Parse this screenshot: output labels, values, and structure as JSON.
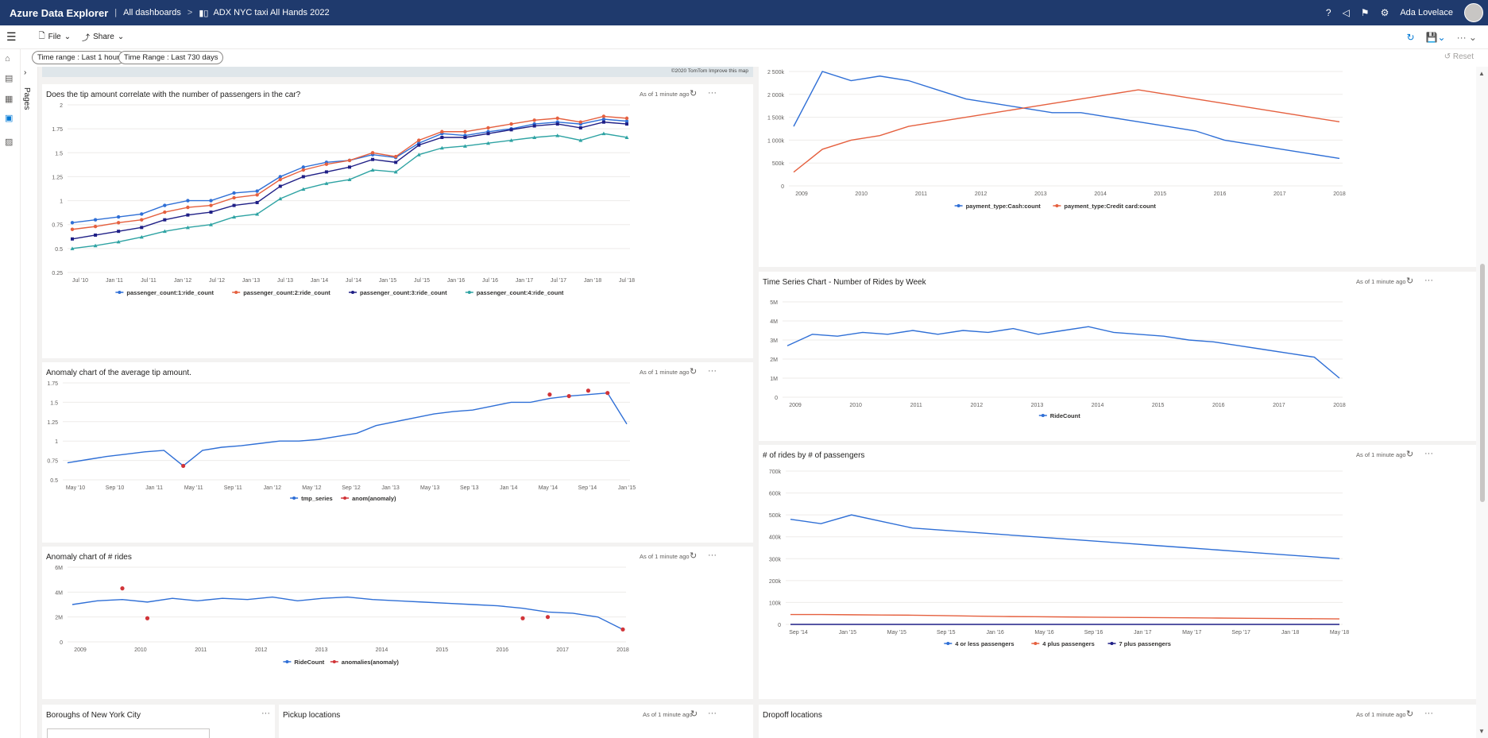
{
  "header": {
    "app_title": "Azure Data Explorer",
    "breadcrumb_root": "All dashboards",
    "dashboard_name": "ADX NYC taxi All Hands 2022",
    "user_name": "Ada Lovelace",
    "icons": [
      "help-icon",
      "megaphone-icon",
      "feedback-icon",
      "settings-icon"
    ]
  },
  "toolbar": {
    "file_label": "File",
    "share_label": "Share",
    "reset_label": "Reset"
  },
  "filters": {
    "time_range_1": "Time range : Last 1 hour",
    "time_range_2": "Time Range : Last 730 days"
  },
  "pages_label": "Pages",
  "map_attribution": "©2020 TomTom  Improve this map",
  "tiles": {
    "tip_vs_passengers": {
      "title": "Does the tip amount correlate with the number of passengers in the car?",
      "meta": "As of 1 minute ago"
    },
    "anomaly_tip": {
      "title": "Anomaly chart of the average tip amount.",
      "meta": "As of 1 minute ago"
    },
    "anomaly_rides": {
      "title": "Anomaly chart of # rides",
      "meta": "As of 1 minute ago"
    },
    "payment_type": {
      "title": "",
      "meta": ""
    },
    "rides_by_week": {
      "title": "Time Series Chart - Number of Rides by Week",
      "meta": "As of 1 minute ago"
    },
    "rides_by_passengers": {
      "title": "# of rides by # of passengers",
      "meta": "As of 1 minute ago"
    },
    "boroughs": {
      "title": "Boroughs of New York City",
      "meta": ""
    },
    "pickup": {
      "title": "Pickup locations",
      "meta": "As of 1 minute ago"
    },
    "dropoff": {
      "title": "Dropoff locations",
      "meta": "As of 1 minute ago"
    }
  },
  "chart_data": [
    {
      "id": "tip_vs_passengers",
      "type": "line",
      "x_ticks": [
        "Jul '10",
        "Jan '11",
        "Jul '11",
        "Jan '12",
        "Jul '12",
        "Jan '13",
        "Jul '13",
        "Jan '14",
        "Jul '14",
        "Jan '15",
        "Jul '15",
        "Jan '16",
        "Jul '16",
        "Jan '17",
        "Jul '17",
        "Jan '18",
        "Jul '18"
      ],
      "ylim": [
        0.25,
        2
      ],
      "y_ticks": [
        "0.25",
        "0.5",
        "0.75",
        "1",
        "1.25",
        "1.5",
        "1.75",
        "2"
      ],
      "series": [
        {
          "name": "passenger_count:1:ride_count",
          "color": "#2f6fd6",
          "marker": "circle",
          "values": [
            0.77,
            0.8,
            0.83,
            0.86,
            0.95,
            1.0,
            1.0,
            1.08,
            1.1,
            1.25,
            1.35,
            1.4,
            1.42,
            1.48,
            1.45,
            1.6,
            1.7,
            1.68,
            1.72,
            1.75,
            1.8,
            1.82,
            1.8,
            1.85,
            1.83
          ]
        },
        {
          "name": "passenger_count:2:ride_count",
          "color": "#e5603f",
          "marker": "circle",
          "values": [
            0.7,
            0.73,
            0.77,
            0.8,
            0.88,
            0.93,
            0.95,
            1.03,
            1.06,
            1.22,
            1.32,
            1.38,
            1.42,
            1.5,
            1.46,
            1.63,
            1.72,
            1.72,
            1.76,
            1.8,
            1.84,
            1.86,
            1.82,
            1.88,
            1.86
          ]
        },
        {
          "name": "passenger_count:3:ride_count",
          "color": "#1f1f86",
          "marker": "square",
          "values": [
            0.6,
            0.64,
            0.68,
            0.72,
            0.8,
            0.85,
            0.88,
            0.95,
            0.98,
            1.15,
            1.25,
            1.3,
            1.35,
            1.43,
            1.4,
            1.58,
            1.66,
            1.66,
            1.7,
            1.74,
            1.78,
            1.8,
            1.76,
            1.82,
            1.8
          ]
        },
        {
          "name": "passenger_count:4:ride_count",
          "color": "#2ea3a3",
          "marker": "triangle",
          "values": [
            0.5,
            0.53,
            0.57,
            0.62,
            0.68,
            0.72,
            0.75,
            0.83,
            0.86,
            1.02,
            1.12,
            1.18,
            1.22,
            1.32,
            1.3,
            1.48,
            1.55,
            1.57,
            1.6,
            1.63,
            1.66,
            1.68,
            1.63,
            1.7,
            1.66
          ]
        }
      ]
    },
    {
      "id": "anomaly_tip",
      "type": "line",
      "x_ticks": [
        "May '10",
        "Sep '10",
        "Jan '11",
        "May '11",
        "Sep '11",
        "Jan '12",
        "May '12",
        "Sep '12",
        "Jan '13",
        "May '13",
        "Sep '13",
        "Jan '14",
        "May '14",
        "Sep '14",
        "Jan '15"
      ],
      "ylim": [
        0.5,
        1.75
      ],
      "y_ticks": [
        "0.5",
        "0.75",
        "1",
        "1.25",
        "1.5",
        "1.75"
      ],
      "series": [
        {
          "name": "tmp_series",
          "color": "#2f6fd6",
          "values": [
            0.72,
            0.76,
            0.8,
            0.83,
            0.86,
            0.88,
            0.68,
            0.88,
            0.92,
            0.94,
            0.97,
            1.0,
            1.0,
            1.02,
            1.06,
            1.1,
            1.2,
            1.25,
            1.3,
            1.35,
            1.38,
            1.4,
            1.45,
            1.5,
            1.5,
            1.55,
            1.58,
            1.6,
            1.62,
            1.22
          ]
        },
        {
          "name": "anom(anomaly)",
          "color": "#d13438",
          "points": [
            [
              6,
              0.68
            ],
            [
              25,
              1.6
            ],
            [
              26,
              1.58
            ],
            [
              27,
              1.65
            ],
            [
              28,
              1.62
            ]
          ]
        }
      ]
    },
    {
      "id": "anomaly_rides",
      "type": "line",
      "x_ticks": [
        "2009",
        "2010",
        "2011",
        "2012",
        "2013",
        "2014",
        "2015",
        "2016",
        "2017",
        "2018"
      ],
      "ylim": [
        0,
        6000000
      ],
      "y_ticks": [
        "0",
        "2M",
        "4M",
        "6M"
      ],
      "series": [
        {
          "name": "RideCount",
          "color": "#2f6fd6",
          "values": [
            3000000,
            3300000,
            3400000,
            3200000,
            3500000,
            3300000,
            3500000,
            3400000,
            3600000,
            3300000,
            3500000,
            3600000,
            3400000,
            3300000,
            3200000,
            3100000,
            3000000,
            2900000,
            2700000,
            2400000,
            2300000,
            2000000,
            1000000
          ]
        },
        {
          "name": "anomalies(anomaly)",
          "color": "#d13438",
          "points": [
            [
              2,
              4300000
            ],
            [
              3,
              1900000
            ],
            [
              18,
              1900000
            ],
            [
              19,
              2000000
            ],
            [
              22,
              1000000
            ]
          ]
        }
      ]
    },
    {
      "id": "payment_type",
      "type": "line",
      "x_ticks": [
        "2009",
        "2010",
        "2011",
        "2012",
        "2013",
        "2014",
        "2015",
        "2016",
        "2017",
        "2018"
      ],
      "ylim": [
        0,
        2500000
      ],
      "y_ticks": [
        "0",
        "500k",
        "1 000k",
        "1 500k",
        "2 000k",
        "2 500k"
      ],
      "series": [
        {
          "name": "payment_type:Cash:count",
          "color": "#2f6fd6",
          "values": [
            1300000,
            2500000,
            2300000,
            2400000,
            2300000,
            2100000,
            1900000,
            1800000,
            1700000,
            1600000,
            1600000,
            1500000,
            1400000,
            1300000,
            1200000,
            1000000,
            900000,
            800000,
            700000,
            600000
          ]
        },
        {
          "name": "payment_type:Credit card:count",
          "color": "#e5603f",
          "values": [
            300000,
            800000,
            1000000,
            1100000,
            1300000,
            1400000,
            1500000,
            1600000,
            1700000,
            1800000,
            1900000,
            2000000,
            2100000,
            2000000,
            1900000,
            1800000,
            1700000,
            1600000,
            1500000,
            1400000
          ]
        }
      ]
    },
    {
      "id": "rides_by_week",
      "type": "line",
      "x_ticks": [
        "2009",
        "2010",
        "2011",
        "2012",
        "2013",
        "2014",
        "2015",
        "2016",
        "2017",
        "2018"
      ],
      "ylim": [
        0,
        5000000
      ],
      "y_ticks": [
        "0",
        "1M",
        "2M",
        "3M",
        "4M",
        "5M"
      ],
      "series": [
        {
          "name": "RideCount",
          "color": "#2f6fd6",
          "values": [
            2700000,
            3300000,
            3200000,
            3400000,
            3300000,
            3500000,
            3300000,
            3500000,
            3400000,
            3600000,
            3300000,
            3500000,
            3700000,
            3400000,
            3300000,
            3200000,
            3000000,
            2900000,
            2700000,
            2500000,
            2300000,
            2100000,
            1000000
          ]
        }
      ]
    },
    {
      "id": "rides_by_passengers",
      "type": "line",
      "x_ticks": [
        "Sep '14",
        "Jan '15",
        "May '15",
        "Sep '15",
        "Jan '16",
        "May '16",
        "Sep '16",
        "Jan '17",
        "May '17",
        "Sep '17",
        "Jan '18",
        "May '18"
      ],
      "ylim": [
        0,
        700000
      ],
      "y_ticks": [
        "0",
        "100k",
        "200k",
        "300k",
        "400k",
        "500k",
        "600k",
        "700k"
      ],
      "series": [
        {
          "name": "4 or less passengers",
          "color": "#2f6fd6",
          "values": [
            480000,
            460000,
            500000,
            470000,
            440000,
            430000,
            420000,
            410000,
            400000,
            390000,
            380000,
            370000,
            360000,
            350000,
            340000,
            330000,
            320000,
            310000,
            300000
          ]
        },
        {
          "name": "4 plus passengers",
          "color": "#e5603f",
          "values": [
            45000,
            45000,
            44000,
            43000,
            42000,
            40000,
            38000,
            36000,
            35000,
            34000,
            33000,
            32000,
            31000,
            30000,
            29000,
            28000,
            27000,
            26000,
            25000
          ]
        },
        {
          "name": "7 plus passengers",
          "color": "#1f1f86",
          "values": [
            0,
            0,
            0,
            0,
            0,
            0,
            0,
            0,
            0,
            0,
            0,
            0,
            0,
            0,
            0,
            0,
            0,
            0,
            0
          ]
        }
      ]
    }
  ]
}
